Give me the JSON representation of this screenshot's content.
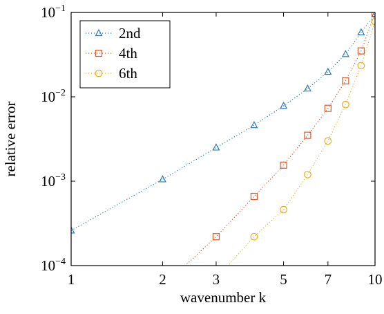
{
  "chart_data": {
    "type": "line",
    "xlabel": "wavenumber k",
    "ylabel": "relative error",
    "xscale": "log",
    "yscale": "log",
    "x": [
      1,
      2,
      3,
      4,
      5,
      6,
      7,
      8,
      9,
      10
    ],
    "series": [
      {
        "name": "2nd",
        "color": "#2b7bba",
        "marker": "triangle",
        "values": [
          0.00026,
          0.00105,
          0.0025,
          0.0046,
          0.0078,
          0.0125,
          0.0197,
          0.032,
          0.058,
          0.095
        ]
      },
      {
        "name": "4th",
        "color": "#d95a2b",
        "marker": "square",
        "values": [
          null,
          5.6e-05,
          0.00022,
          0.00066,
          0.00155,
          0.0035,
          0.0073,
          0.0155,
          0.035,
          0.098
        ]
      },
      {
        "name": "6th",
        "color": "#edb120",
        "marker": "circle",
        "values": [
          null,
          null,
          7e-05,
          0.00022,
          0.00046,
          0.0012,
          0.003,
          0.0081,
          0.0234,
          0.078
        ]
      }
    ],
    "xlim": [
      1,
      10
    ],
    "ylim": [
      0.0001,
      0.1
    ],
    "xticks": [
      1,
      2,
      3,
      5,
      7,
      10
    ],
    "yticks": [
      {
        "value": 0.0001,
        "label": "10",
        "exponent": "−4"
      },
      {
        "value": 0.001,
        "label": "10",
        "exponent": "−3"
      },
      {
        "value": 0.01,
        "label": "10",
        "exponent": "−2"
      },
      {
        "value": 0.1,
        "label": "10",
        "exponent": "−1"
      }
    ],
    "legend": "upper left"
  }
}
